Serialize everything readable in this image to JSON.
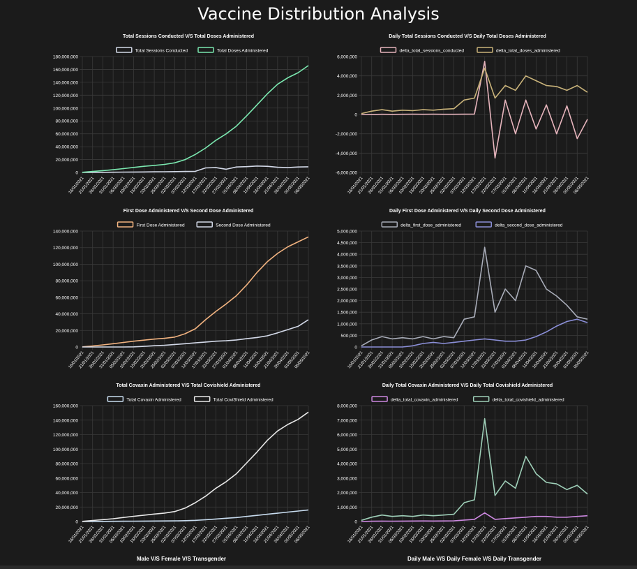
{
  "page": {
    "title": "Vaccine Distribution Analysis"
  },
  "footer": {
    "left_title": "Male V/S Female V/S Transgender",
    "right_title": "Daily Male V/S Daily Female V/S Daily Transgender"
  },
  "x_dates": [
    "16/01/2021",
    "21/01/2021",
    "26/01/2021",
    "31/01/2021",
    "05/02/2021",
    "10/02/2021",
    "15/02/2021",
    "20/02/2021",
    "25/02/2021",
    "02/03/2021",
    "07/03/2021",
    "12/03/2021",
    "17/03/2021",
    "22/03/2021",
    "27/03/2021",
    "01/04/2021",
    "06/04/2021",
    "11/04/2021",
    "16/04/2021",
    "21/04/2021",
    "26/04/2021",
    "01/05/2021",
    "06/05/2021"
  ],
  "chart_data": [
    {
      "type": "line",
      "title": "Total Sessions Conducted V/S Total Doses Administered",
      "ylim": [
        0,
        180000000
      ],
      "yticks": [
        0,
        20000000,
        40000000,
        60000000,
        80000000,
        100000000,
        120000000,
        140000000,
        160000000,
        180000000
      ],
      "ytick_labels": [
        "0",
        "20,000,000",
        "40,000,000",
        "60,000,000",
        "80,000,000",
        "100,000,000",
        "120,000,000",
        "140,000,000",
        "160,000,000",
        "180,000,000"
      ],
      "series": [
        {
          "name": "Total Sessions Conducted",
          "color": "#d3d9e8",
          "values": [
            0,
            100000,
            200000,
            350000,
            500000,
            650000,
            800000,
            950000,
            1100000,
            1300000,
            1500000,
            1700000,
            7000000,
            7500000,
            5000000,
            8500000,
            9000000,
            10000000,
            9500000,
            8000000,
            7500000,
            8500000,
            8800000
          ]
        },
        {
          "name": "Total Doses Administered",
          "color": "#7be8b0",
          "values": [
            200000,
            1500000,
            2800000,
            4200000,
            6000000,
            7800000,
            9500000,
            11000000,
            12500000,
            15000000,
            20000000,
            28000000,
            38000000,
            50000000,
            60000000,
            72000000,
            88000000,
            105000000,
            122000000,
            137000000,
            147000000,
            155000000,
            166000000
          ]
        }
      ]
    },
    {
      "type": "line",
      "title": "Daily Total Sessions Conducted V/S Daily Total Doses Administered",
      "ylim": [
        -6000000,
        6000000
      ],
      "yticks": [
        -6000000,
        -4000000,
        -2000000,
        0,
        2000000,
        4000000,
        6000000
      ],
      "ytick_labels": [
        "-6,000,000",
        "-4,000,000",
        "-2,000,000",
        "0",
        "2,000,000",
        "4,000,000",
        "6,000,000"
      ],
      "series": [
        {
          "name": "delta_total_sessions_conducted",
          "color": "#e6b4bc",
          "values": [
            0,
            10000,
            20000,
            15000,
            20000,
            30000,
            20000,
            30000,
            25000,
            20000,
            30000,
            40000,
            5500000,
            -4500000,
            1500000,
            -2000000,
            1500000,
            -1500000,
            1000000,
            -2000000,
            900000,
            -2500000,
            -500000
          ]
        },
        {
          "name": "delta_total_doses_administered",
          "color": "#c9b37a",
          "values": [
            100000,
            350000,
            500000,
            350000,
            450000,
            400000,
            500000,
            450000,
            550000,
            600000,
            1500000,
            1700000,
            4800000,
            1700000,
            3000000,
            2500000,
            4000000,
            3500000,
            3000000,
            2900000,
            2500000,
            3000000,
            2300000
          ]
        }
      ]
    },
    {
      "type": "line",
      "title": "First Dose Administered V/S Second Dose Administered",
      "ylim": [
        0,
        140000000
      ],
      "yticks": [
        0,
        20000000,
        40000000,
        60000000,
        80000000,
        100000000,
        120000000,
        140000000
      ],
      "ytick_labels": [
        "0",
        "20,000,000",
        "40,000,000",
        "60,000,000",
        "80,000,000",
        "100,000,000",
        "120,000,000",
        "140,000,000"
      ],
      "series": [
        {
          "name": "First Dose Administered",
          "color": "#f2b380",
          "values": [
            200000,
            1200000,
            2500000,
            4000000,
            5500000,
            7000000,
            8300000,
            9500000,
            10500000,
            12000000,
            16000000,
            22000000,
            33000000,
            43000000,
            52000000,
            62000000,
            75000000,
            90000000,
            103000000,
            113000000,
            121000000,
            127000000,
            133000000
          ]
        },
        {
          "name": "Second Dose Administered",
          "color": "#d3d9e8",
          "values": [
            0,
            0,
            0,
            0,
            0,
            200000,
            800000,
            1500000,
            2000000,
            3000000,
            4000000,
            5000000,
            6000000,
            7000000,
            7500000,
            8500000,
            10000000,
            11500000,
            13500000,
            17000000,
            21000000,
            25000000,
            33000000
          ]
        }
      ]
    },
    {
      "type": "line",
      "title": "Daily First Dose Administered V/S Daily Second Dose Administered",
      "ylim": [
        0,
        5000000
      ],
      "yticks": [
        0,
        500000,
        1000000,
        1500000,
        2000000,
        2500000,
        3000000,
        3500000,
        4000000,
        4500000,
        5000000
      ],
      "ytick_labels": [
        "0",
        "500,000",
        "1,000,000",
        "1,500,000",
        "2,000,000",
        "2,500,000",
        "3,000,000",
        "3,500,000",
        "4,000,000",
        "4,500,000",
        "5,000,000"
      ],
      "series": [
        {
          "name": "delta_first_dose_administered",
          "color": "#a8acb8",
          "values": [
            50000,
            300000,
            450000,
            350000,
            400000,
            350000,
            450000,
            350000,
            450000,
            400000,
            1200000,
            1300000,
            4300000,
            1500000,
            2500000,
            2000000,
            3500000,
            3300000,
            2500000,
            2200000,
            1800000,
            1300000,
            1200000
          ]
        },
        {
          "name": "delta_second_dose_administered",
          "color": "#8b8fd8",
          "values": [
            0,
            0,
            0,
            0,
            0,
            50000,
            150000,
            200000,
            150000,
            200000,
            250000,
            300000,
            350000,
            300000,
            250000,
            250000,
            300000,
            450000,
            650000,
            900000,
            1100000,
            1200000,
            1050000
          ]
        }
      ]
    },
    {
      "type": "line",
      "title": "Total Covaxin Administered V/S Total Covishield Administered",
      "ylim": [
        0,
        160000000
      ],
      "yticks": [
        0,
        20000000,
        40000000,
        60000000,
        80000000,
        100000000,
        120000000,
        140000000,
        160000000
      ],
      "ytick_labels": [
        "0",
        "20,000,000",
        "40,000,000",
        "60,000,000",
        "80,000,000",
        "100,000,000",
        "120,000,000",
        "140,000,000",
        "160,000,000"
      ],
      "series": [
        {
          "name": "Total Covaxin Administered",
          "color": "#c8dcef",
          "values": [
            0,
            100000,
            200000,
            300000,
            400000,
            500000,
            600000,
            700000,
            800000,
            900000,
            1200000,
            1600000,
            2500000,
            3500000,
            4500000,
            5500000,
            7000000,
            8500000,
            10000000,
            11500000,
            13000000,
            14500000,
            16000000
          ]
        },
        {
          "name": "Total CoviShield Administered",
          "color": "#e8e8e8",
          "values": [
            200000,
            1400000,
            2600000,
            3900000,
            5600000,
            7200000,
            8800000,
            10300000,
            11700000,
            13800000,
            18500000,
            26000000,
            35000000,
            46000000,
            55000000,
            66000000,
            81000000,
            96000000,
            112000000,
            125000000,
            134000000,
            141000000,
            151000000
          ]
        }
      ]
    },
    {
      "type": "line",
      "title": "Daily Total Covaxin Administered V/S Daily Total Covishield Administered",
      "ylim": [
        0,
        8000000
      ],
      "yticks": [
        0,
        1000000,
        2000000,
        3000000,
        4000000,
        5000000,
        6000000,
        7000000,
        8000000
      ],
      "ytick_labels": [
        "0",
        "1,000,000",
        "2,000,000",
        "3,000,000",
        "4,000,000",
        "5,000,000",
        "6,000,000",
        "7,000,000",
        "8,000,000"
      ],
      "series": [
        {
          "name": "delta_total_covaxin_administered",
          "color": "#cc88e0",
          "values": [
            0,
            20000,
            30000,
            25000,
            30000,
            35000,
            40000,
            35000,
            40000,
            50000,
            100000,
            150000,
            600000,
            150000,
            200000,
            250000,
            300000,
            350000,
            350000,
            300000,
            300000,
            350000,
            400000
          ]
        },
        {
          "name": "delta_total_covishield_administered",
          "color": "#9ecfb8",
          "values": [
            80000,
            300000,
            450000,
            350000,
            400000,
            350000,
            450000,
            400000,
            450000,
            500000,
            1300000,
            1500000,
            7100000,
            1800000,
            2800000,
            2300000,
            4500000,
            3300000,
            2700000,
            2600000,
            2200000,
            2500000,
            1900000
          ]
        }
      ]
    }
  ]
}
